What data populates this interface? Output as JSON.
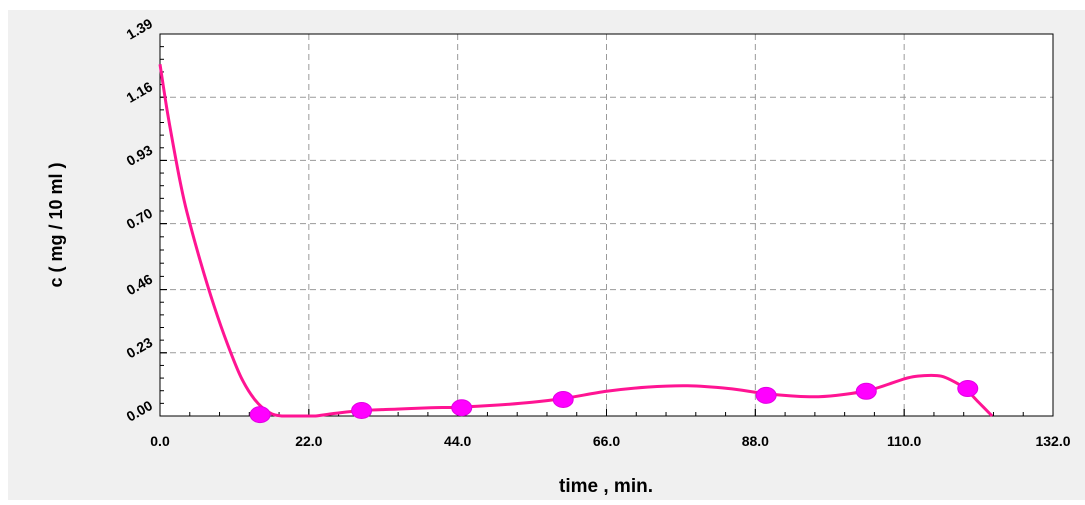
{
  "chart_data": {
    "type": "line",
    "xlabel": "time , min.",
    "ylabel": "c ( mg / 10 ml )",
    "xlim": [
      0,
      132
    ],
    "ylim": [
      0,
      1.39
    ],
    "x_ticks": [
      "0.0",
      "22.0",
      "44.0",
      "66.0",
      "88.0",
      "110.0",
      "132.0"
    ],
    "y_ticks": [
      "0.00",
      "0.23",
      "0.46",
      "0.70",
      "0.93",
      "1.16",
      "1.39"
    ],
    "x_tick_values": [
      0,
      22,
      44,
      66,
      88,
      110,
      132
    ],
    "y_tick_values": [
      0,
      0.23,
      0.46,
      0.7,
      0.93,
      1.16,
      1.39
    ],
    "grid": true,
    "series": [
      {
        "kind": "fitted-curve",
        "color": "#ff1493",
        "x": [
          0,
          1,
          2,
          3,
          4,
          6,
          8,
          10,
          12,
          14,
          16,
          18,
          22,
          23,
          26,
          30,
          35,
          40,
          44,
          50,
          55,
          60,
          66,
          72,
          78,
          84,
          90,
          96,
          100,
          105,
          110,
          112,
          114,
          115.5,
          117,
          119,
          121,
          123
        ],
        "y": [
          1.28,
          1.12,
          0.98,
          0.85,
          0.74,
          0.56,
          0.4,
          0.26,
          0.14,
          0.06,
          0.015,
          0.0,
          0.0,
          0.0,
          0.01,
          0.02,
          0.025,
          0.03,
          0.032,
          0.04,
          0.05,
          0.065,
          0.09,
          0.105,
          0.11,
          0.1,
          0.08,
          0.07,
          0.075,
          0.095,
          0.135,
          0.145,
          0.148,
          0.145,
          0.13,
          0.1,
          0.05,
          0.0
        ]
      },
      {
        "kind": "observed-points",
        "color": "#ff00ff",
        "x": [
          14.8,
          29.8,
          44.6,
          59.6,
          89.6,
          104.4,
          119.4
        ],
        "y": [
          0.005,
          0.02,
          0.03,
          0.06,
          0.075,
          0.09,
          0.1
        ]
      }
    ]
  }
}
